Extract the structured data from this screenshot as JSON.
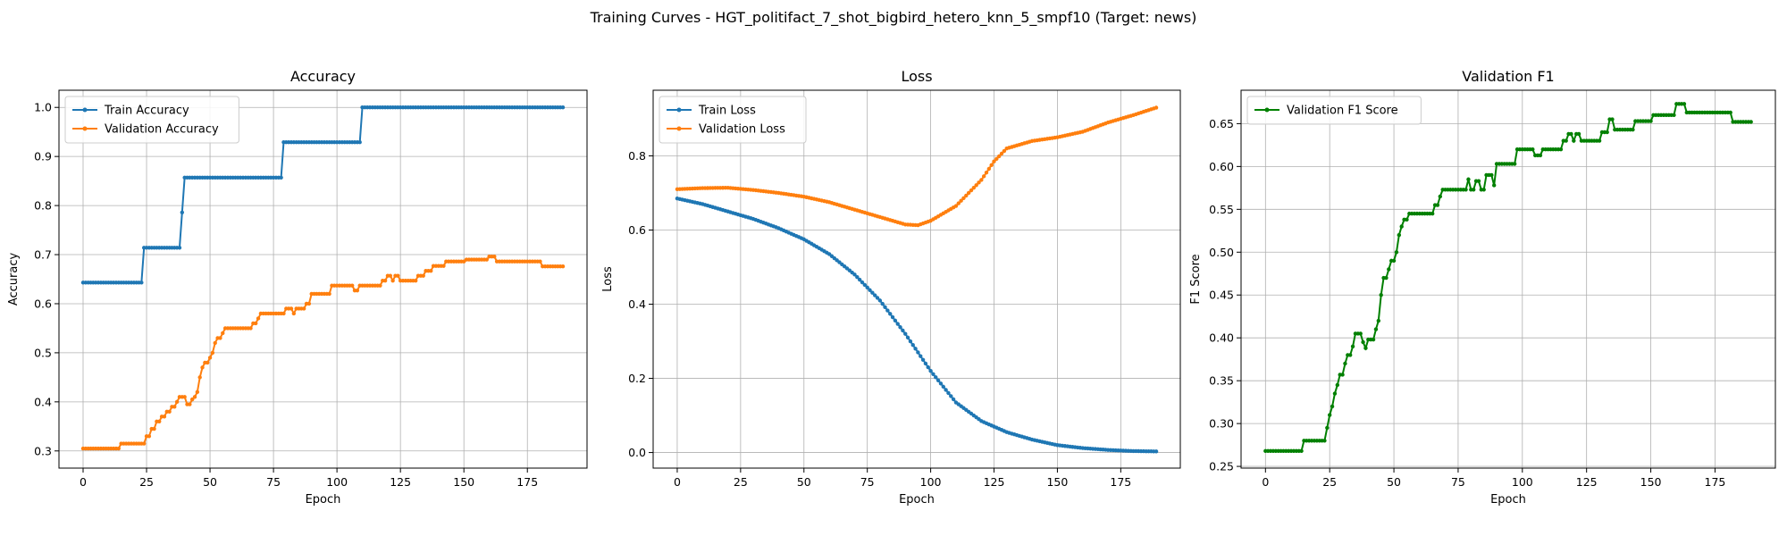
{
  "figure": {
    "suptitle": "Training Curves - HGT_politifact_7_shot_bigbird_hetero_knn_5_smpf10 (Target: news)"
  },
  "colors": {
    "blue": "#1f77b4",
    "orange": "#ff7f0e",
    "green": "#008000",
    "grid": "#b0b0b0"
  },
  "chart_data": [
    {
      "type": "line",
      "title": "Accuracy",
      "xlabel": "Epoch",
      "ylabel": "Accuracy",
      "xlim": [
        -9.5,
        198.5
      ],
      "ylim": [
        0.265,
        1.035
      ],
      "xticks": [
        0,
        25,
        50,
        75,
        100,
        125,
        150,
        175
      ],
      "yticks": [
        0.3,
        0.4,
        0.5,
        0.6,
        0.7,
        0.8,
        0.9,
        1.0
      ],
      "ytick_decimals": 1,
      "grid": true,
      "legend": "upper-left",
      "n_epochs": 190,
      "series": [
        {
          "name": "Train Accuracy",
          "color": "#1f77b4",
          "points": [
            [
              0,
              0.643
            ],
            [
              23,
              0.643
            ],
            [
              24,
              0.714
            ],
            [
              38,
              0.714
            ],
            [
              39,
              0.786
            ],
            [
              40,
              0.857
            ],
            [
              78,
              0.857
            ],
            [
              79,
              0.929
            ],
            [
              109,
              0.929
            ],
            [
              110,
              1.0
            ],
            [
              189,
              1.0
            ]
          ],
          "interp": "step"
        },
        {
          "name": "Validation Accuracy",
          "color": "#ff7f0e",
          "points": [
            [
              0,
              0.305
            ],
            [
              14,
              0.305
            ],
            [
              15,
              0.315
            ],
            [
              24,
              0.315
            ],
            [
              25,
              0.33
            ],
            [
              27,
              0.345
            ],
            [
              29,
              0.36
            ],
            [
              31,
              0.37
            ],
            [
              33,
              0.38
            ],
            [
              35,
              0.39
            ],
            [
              37,
              0.4
            ],
            [
              38,
              0.41
            ],
            [
              40,
              0.41
            ],
            [
              41,
              0.395
            ],
            [
              43,
              0.405
            ],
            [
              44,
              0.41
            ],
            [
              45,
              0.42
            ],
            [
              46,
              0.45
            ],
            [
              47,
              0.47
            ],
            [
              48,
              0.48
            ],
            [
              50,
              0.49
            ],
            [
              51,
              0.5
            ],
            [
              52,
              0.52
            ],
            [
              53,
              0.53
            ],
            [
              55,
              0.54
            ],
            [
              56,
              0.55
            ],
            [
              66,
              0.55
            ],
            [
              67,
              0.56
            ],
            [
              69,
              0.57
            ],
            [
              70,
              0.58
            ],
            [
              79,
              0.58
            ],
            [
              80,
              0.59
            ],
            [
              83,
              0.58
            ],
            [
              84,
              0.59
            ],
            [
              87,
              0.59
            ],
            [
              88,
              0.6
            ],
            [
              90,
              0.62
            ],
            [
              97,
              0.62
            ],
            [
              98,
              0.637
            ],
            [
              106,
              0.637
            ],
            [
              107,
              0.627
            ],
            [
              109,
              0.637
            ],
            [
              117,
              0.637
            ],
            [
              118,
              0.647
            ],
            [
              120,
              0.657
            ],
            [
              122,
              0.647
            ],
            [
              123,
              0.657
            ],
            [
              125,
              0.647
            ],
            [
              131,
              0.647
            ],
            [
              132,
              0.657
            ],
            [
              135,
              0.667
            ],
            [
              137,
              0.667
            ],
            [
              138,
              0.677
            ],
            [
              142,
              0.677
            ],
            [
              143,
              0.686
            ],
            [
              150,
              0.686
            ],
            [
              151,
              0.69
            ],
            [
              159,
              0.69
            ],
            [
              160,
              0.696
            ],
            [
              163,
              0.686
            ],
            [
              180,
              0.686
            ],
            [
              181,
              0.676
            ],
            [
              189,
              0.676
            ]
          ],
          "interp": "step"
        }
      ]
    },
    {
      "type": "line",
      "title": "Loss",
      "xlabel": "Epoch",
      "ylabel": "Loss",
      "xlim": [
        -9.5,
        198.5
      ],
      "ylim": [
        -0.042,
        0.977
      ],
      "xticks": [
        0,
        25,
        50,
        75,
        100,
        125,
        150,
        175
      ],
      "yticks": [
        0.0,
        0.2,
        0.4,
        0.6,
        0.8
      ],
      "ytick_decimals": 1,
      "grid": true,
      "legend": "upper-left",
      "n_epochs": 190,
      "series": [
        {
          "name": "Train Loss",
          "color": "#1f77b4",
          "points": [
            [
              0,
              0.685
            ],
            [
              10,
              0.67
            ],
            [
              20,
              0.65
            ],
            [
              30,
              0.63
            ],
            [
              40,
              0.605
            ],
            [
              50,
              0.575
            ],
            [
              60,
              0.535
            ],
            [
              70,
              0.48
            ],
            [
              80,
              0.41
            ],
            [
              90,
              0.32
            ],
            [
              100,
              0.22
            ],
            [
              110,
              0.135
            ],
            [
              120,
              0.085
            ],
            [
              130,
              0.055
            ],
            [
              140,
              0.035
            ],
            [
              150,
              0.02
            ],
            [
              160,
              0.012
            ],
            [
              170,
              0.007
            ],
            [
              180,
              0.004
            ],
            [
              189,
              0.003
            ]
          ],
          "interp": "linear"
        },
        {
          "name": "Validation Loss",
          "color": "#ff7f0e",
          "points": [
            [
              0,
              0.71
            ],
            [
              10,
              0.713
            ],
            [
              20,
              0.714
            ],
            [
              30,
              0.708
            ],
            [
              40,
              0.7
            ],
            [
              50,
              0.69
            ],
            [
              60,
              0.675
            ],
            [
              70,
              0.655
            ],
            [
              80,
              0.635
            ],
            [
              90,
              0.615
            ],
            [
              95,
              0.613
            ],
            [
              100,
              0.625
            ],
            [
              110,
              0.665
            ],
            [
              120,
              0.735
            ],
            [
              125,
              0.785
            ],
            [
              130,
              0.82
            ],
            [
              140,
              0.84
            ],
            [
              150,
              0.85
            ],
            [
              160,
              0.865
            ],
            [
              170,
              0.89
            ],
            [
              180,
              0.91
            ],
            [
              189,
              0.93
            ]
          ],
          "interp": "linear"
        }
      ]
    },
    {
      "type": "line",
      "title": "Validation F1",
      "xlabel": "Epoch",
      "ylabel": "F1 Score",
      "xlim": [
        -9.5,
        198.5
      ],
      "ylim": [
        0.248,
        0.689
      ],
      "xticks": [
        0,
        25,
        50,
        75,
        100,
        125,
        150,
        175
      ],
      "yticks": [
        0.25,
        0.3,
        0.35,
        0.4,
        0.45,
        0.5,
        0.55,
        0.6,
        0.65
      ],
      "ytick_decimals": 2,
      "grid": true,
      "legend": "upper-left",
      "n_epochs": 190,
      "series": [
        {
          "name": "Validation F1 Score",
          "color": "#008000",
          "points": [
            [
              0,
              0.268
            ],
            [
              14,
              0.268
            ],
            [
              15,
              0.28
            ],
            [
              23,
              0.28
            ],
            [
              24,
              0.295
            ],
            [
              25,
              0.31
            ],
            [
              26,
              0.32
            ],
            [
              27,
              0.335
            ],
            [
              28,
              0.345
            ],
            [
              29,
              0.357
            ],
            [
              31,
              0.37
            ],
            [
              32,
              0.38
            ],
            [
              34,
              0.39
            ],
            [
              35,
              0.405
            ],
            [
              37,
              0.405
            ],
            [
              38,
              0.395
            ],
            [
              39,
              0.388
            ],
            [
              40,
              0.398
            ],
            [
              42,
              0.398
            ],
            [
              43,
              0.41
            ],
            [
              44,
              0.42
            ],
            [
              45,
              0.45
            ],
            [
              46,
              0.47
            ],
            [
              48,
              0.48
            ],
            [
              49,
              0.49
            ],
            [
              51,
              0.5
            ],
            [
              52,
              0.52
            ],
            [
              53,
              0.53
            ],
            [
              54,
              0.538
            ],
            [
              56,
              0.545
            ],
            [
              65,
              0.545
            ],
            [
              66,
              0.555
            ],
            [
              68,
              0.565
            ],
            [
              69,
              0.573
            ],
            [
              78,
              0.573
            ],
            [
              79,
              0.585
            ],
            [
              80,
              0.573
            ],
            [
              82,
              0.583
            ],
            [
              84,
              0.573
            ],
            [
              86,
              0.59
            ],
            [
              88,
              0.59
            ],
            [
              89,
              0.578
            ],
            [
              90,
              0.603
            ],
            [
              97,
              0.603
            ],
            [
              98,
              0.62
            ],
            [
              104,
              0.62
            ],
            [
              105,
              0.613
            ],
            [
              108,
              0.62
            ],
            [
              115,
              0.62
            ],
            [
              116,
              0.63
            ],
            [
              118,
              0.638
            ],
            [
              120,
              0.63
            ],
            [
              121,
              0.638
            ],
            [
              123,
              0.63
            ],
            [
              130,
              0.63
            ],
            [
              131,
              0.64
            ],
            [
              133,
              0.64
            ],
            [
              134,
              0.655
            ],
            [
              136,
              0.643
            ],
            [
              143,
              0.643
            ],
            [
              144,
              0.653
            ],
            [
              150,
              0.653
            ],
            [
              151,
              0.66
            ],
            [
              159,
              0.66
            ],
            [
              160,
              0.673
            ],
            [
              164,
              0.663
            ],
            [
              181,
              0.663
            ],
            [
              182,
              0.652
            ],
            [
              189,
              0.652
            ]
          ],
          "interp": "step"
        }
      ]
    }
  ]
}
